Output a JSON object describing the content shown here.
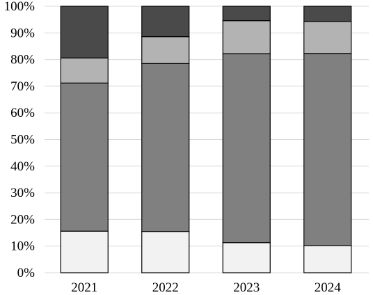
{
  "chart_data": {
    "type": "bar",
    "stacked": true,
    "title": "",
    "xlabel": "",
    "ylabel": "",
    "categories": [
      "2021",
      "2022",
      "2023",
      "2024"
    ],
    "ylim": [
      0,
      100
    ],
    "yticks": [
      "0%",
      "10%",
      "20%",
      "30%",
      "40%",
      "50%",
      "60%",
      "70%",
      "80%",
      "90%",
      "100%"
    ],
    "grid": true,
    "legend": "none",
    "series": [
      {
        "values": [
          15.6,
          15.5,
          11.3,
          10.2
        ],
        "color": "#f2f2f2"
      },
      {
        "values": [
          55.6,
          63.0,
          70.9,
          72.1
        ],
        "color": "#808080"
      },
      {
        "values": [
          9.4,
          10.1,
          12.4,
          12.0
        ],
        "color": "#b3b3b3"
      },
      {
        "values": [
          19.4,
          11.4,
          5.4,
          5.7
        ],
        "color": "#4a4a4a"
      }
    ]
  }
}
